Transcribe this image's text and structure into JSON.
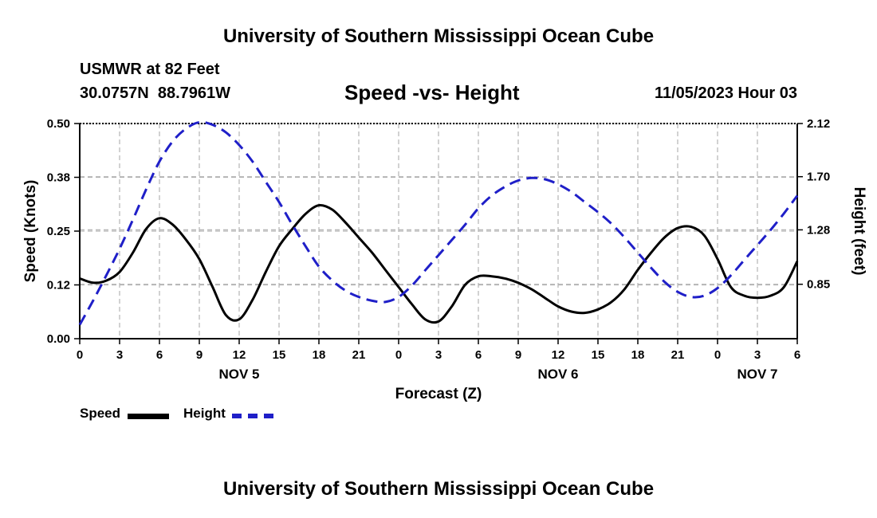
{
  "header": {
    "title": "University of Southern Mississippi Ocean Cube",
    "station": "USMWR at 82 Feet",
    "coords": "30.0757N  88.7961W",
    "subtitle": "Speed -vs- Height",
    "datetime": "11/05/2023 Hour 03"
  },
  "footer": {
    "title": "University of Southern Mississippi Ocean Cube"
  },
  "colors": {
    "speed": "#000000",
    "height": "#1f1fc8",
    "grid": "#b4b4b4"
  },
  "legend": {
    "speed_label": "Speed",
    "height_label": "Height"
  },
  "chart_data": {
    "type": "line",
    "title": "Speed -vs- Height",
    "xlabel": "Forecast (Z)",
    "ylabel": "Speed (Knots)",
    "y2label": "Height (feet)",
    "xlim": [
      0,
      54
    ],
    "ylim": [
      0,
      0.5
    ],
    "y2lim": [
      0.42,
      2.12
    ],
    "x_ticks": [
      0,
      3,
      6,
      9,
      12,
      15,
      18,
      21,
      24,
      27,
      30,
      33,
      36,
      39,
      42,
      45,
      48,
      51,
      54
    ],
    "x_tick_labels": [
      "0",
      "3",
      "6",
      "9",
      "12",
      "15",
      "18",
      "21",
      "0",
      "3",
      "6",
      "9",
      "12",
      "15",
      "18",
      "21",
      "0",
      "3",
      "6"
    ],
    "y_ticks": [
      0.0,
      0.125,
      0.25,
      0.375,
      0.5
    ],
    "y_tick_labels": [
      "0.00",
      "0.12",
      "0.25",
      "0.38",
      "0.50"
    ],
    "y2_ticks": [
      0.85,
      1.28,
      1.7,
      2.12
    ],
    "y2_tick_labels": [
      "0.85",
      "1.28",
      "1.70",
      "2.12"
    ],
    "date_labels": [
      {
        "x": 12,
        "label": "NOV 5"
      },
      {
        "x": 36,
        "label": "NOV 6"
      },
      {
        "x": 51,
        "label": "NOV 7"
      }
    ],
    "grid": true,
    "legend_position": "bottom-left",
    "series": [
      {
        "name": "Speed",
        "axis": "left",
        "style": "solid",
        "x": [
          0,
          1,
          2,
          3,
          4,
          5,
          6,
          7,
          8,
          9,
          10,
          11,
          12,
          13,
          14,
          15,
          16,
          17,
          18,
          19,
          20,
          21,
          22,
          23,
          24,
          25,
          26,
          27,
          28,
          29,
          30,
          31,
          32,
          33,
          34,
          35,
          36,
          37,
          38,
          39,
          40,
          41,
          42,
          43,
          44,
          45,
          46,
          47,
          48,
          49,
          50,
          51,
          52,
          53,
          54
        ],
        "values": [
          0.14,
          0.13,
          0.135,
          0.155,
          0.2,
          0.255,
          0.28,
          0.265,
          0.23,
          0.185,
          0.12,
          0.055,
          0.045,
          0.09,
          0.155,
          0.215,
          0.255,
          0.29,
          0.31,
          0.3,
          0.27,
          0.235,
          0.2,
          0.16,
          0.12,
          0.08,
          0.045,
          0.04,
          0.075,
          0.125,
          0.145,
          0.145,
          0.14,
          0.13,
          0.115,
          0.095,
          0.075,
          0.063,
          0.06,
          0.068,
          0.085,
          0.115,
          0.16,
          0.2,
          0.235,
          0.257,
          0.26,
          0.24,
          0.185,
          0.12,
          0.1,
          0.095,
          0.1,
          0.12,
          0.18
        ]
      },
      {
        "name": "Height",
        "axis": "right",
        "style": "dashed",
        "x": [
          0,
          1,
          2,
          3,
          4,
          5,
          6,
          7,
          8,
          9,
          10,
          11,
          12,
          13,
          14,
          15,
          16,
          17,
          18,
          19,
          20,
          21,
          22,
          23,
          24,
          25,
          26,
          27,
          28,
          29,
          30,
          31,
          32,
          33,
          34,
          35,
          36,
          37,
          38,
          39,
          40,
          41,
          42,
          43,
          44,
          45,
          46,
          47,
          48,
          49,
          50,
          51,
          52,
          53,
          54
        ],
        "values": [
          0.53,
          0.72,
          0.92,
          1.13,
          1.36,
          1.6,
          1.82,
          1.98,
          2.08,
          2.13,
          2.11,
          2.05,
          1.95,
          1.82,
          1.66,
          1.5,
          1.32,
          1.15,
          0.99,
          0.88,
          0.8,
          0.75,
          0.72,
          0.71,
          0.75,
          0.84,
          0.96,
          1.08,
          1.2,
          1.32,
          1.45,
          1.55,
          1.62,
          1.67,
          1.69,
          1.68,
          1.64,
          1.58,
          1.5,
          1.42,
          1.33,
          1.22,
          1.1,
          0.98,
          0.87,
          0.79,
          0.75,
          0.76,
          0.82,
          0.92,
          1.04,
          1.16,
          1.28,
          1.41,
          1.55
        ]
      }
    ]
  }
}
